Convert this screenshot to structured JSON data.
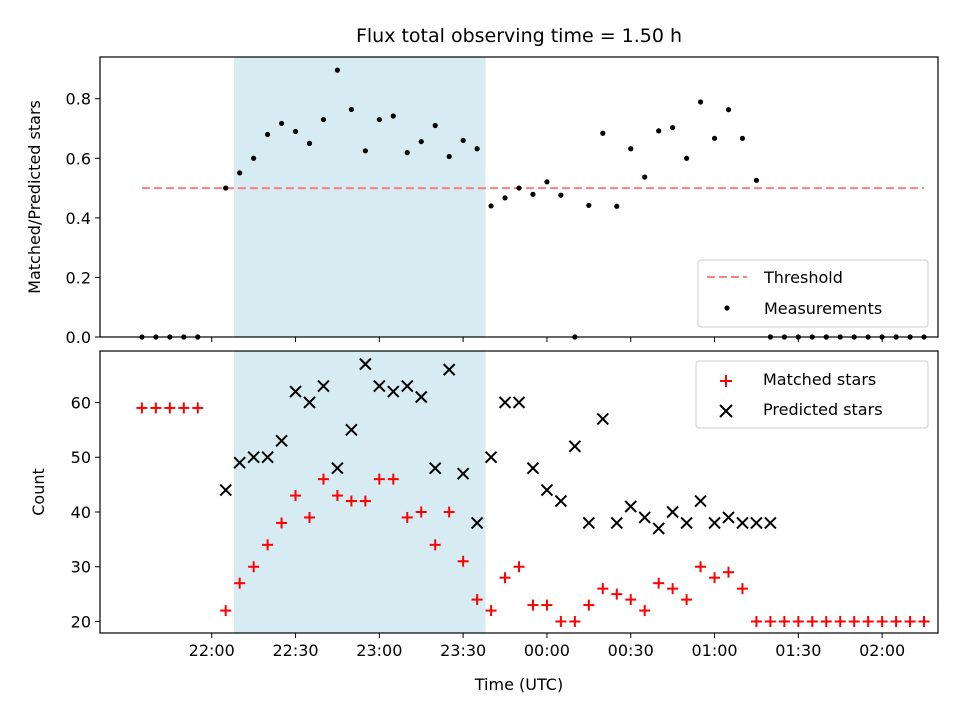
{
  "chart_data": [
    {
      "panel": "top",
      "type": "scatter",
      "title": "Flux total observing time = 1.50 h",
      "ylabel": "Matched/Predicted stars",
      "xlabel": "",
      "ylim": [
        0,
        0.94
      ],
      "yticks": [
        0.0,
        0.2,
        0.4,
        0.6,
        0.8
      ],
      "ytick_labels": [
        "0.0",
        "0.2",
        "0.4",
        "0.6",
        "0.8"
      ],
      "shaded_interval": {
        "from": "22:08",
        "to": "23:38",
        "color": "#add8e6"
      },
      "legend": {
        "placement": "lower right",
        "entries": [
          "Threshold",
          "Measurements"
        ]
      },
      "series": [
        {
          "name": "Threshold",
          "style": "dashed-line",
          "color": "#ff7f7f",
          "x": [
            "21:35",
            "02:15"
          ],
          "y": [
            0.5,
            0.5
          ]
        },
        {
          "name": "Measurements",
          "style": "dot",
          "color": "#000000",
          "x": [
            "21:35",
            "21:40",
            "21:45",
            "21:50",
            "21:55",
            "22:05",
            "22:10",
            "22:15",
            "22:20",
            "22:25",
            "22:30",
            "22:35",
            "22:40",
            "22:45",
            "22:50",
            "22:55",
            "23:00",
            "23:05",
            "23:10",
            "23:15",
            "23:20",
            "23:25",
            "23:30",
            "23:35",
            "23:40",
            "23:45",
            "23:50",
            "23:55",
            "00:00",
            "00:05",
            "00:10",
            "00:15",
            "00:20",
            "00:25",
            "00:30",
            "00:35",
            "00:40",
            "00:45",
            "00:50",
            "00:55",
            "01:00",
            "01:05",
            "01:10",
            "01:15",
            "01:20",
            "01:25",
            "01:30",
            "01:35",
            "01:40",
            "01:45",
            "01:50",
            "01:55",
            "02:00",
            "02:05",
            "02:10",
            "02:15"
          ],
          "y": [
            0.0,
            0.0,
            0.0,
            0.0,
            0.0,
            0.5,
            0.551,
            0.6,
            0.68,
            0.717,
            0.69,
            0.65,
            0.73,
            0.896,
            0.764,
            0.625,
            0.73,
            0.742,
            0.619,
            0.656,
            0.71,
            0.606,
            0.66,
            0.632,
            0.44,
            0.467,
            0.5,
            0.479,
            0.521,
            0.476,
            0.0,
            0.442,
            0.684,
            0.439,
            0.632,
            0.537,
            0.692,
            0.703,
            0.6,
            0.789,
            0.667,
            0.763,
            0.667,
            0.526,
            0.0,
            0.0,
            0.0,
            0.0,
            0.0,
            0.0,
            0.0,
            0.0,
            0.0,
            0.0,
            0.0,
            0.0
          ]
        }
      ]
    },
    {
      "panel": "bottom",
      "type": "scatter",
      "title": "",
      "ylabel": "Count",
      "xlabel": "Time (UTC)",
      "ylim": [
        17.9,
        69.4
      ],
      "yticks": [
        20,
        30,
        40,
        50,
        60
      ],
      "ytick_labels": [
        "20",
        "30",
        "40",
        "50",
        "60"
      ],
      "xlim": [
        "21:20",
        "02:20"
      ],
      "xticks": [
        "22:00",
        "22:30",
        "23:00",
        "23:30",
        "00:00",
        "00:30",
        "01:00",
        "01:30",
        "02:00"
      ],
      "xtick_labels": [
        "22:00",
        "22:30",
        "23:00",
        "23:30",
        "00:00",
        "00:30",
        "01:00",
        "01:30",
        "02:00"
      ],
      "shaded_interval": {
        "from": "22:08",
        "to": "23:38",
        "color": "#add8e6"
      },
      "legend": {
        "placement": "upper right",
        "entries": [
          "Matched stars",
          "Predicted stars"
        ]
      },
      "series": [
        {
          "name": "Matched stars",
          "marker": "plus",
          "color": "#ff0000",
          "x": [
            "21:35",
            "21:40",
            "21:45",
            "21:50",
            "21:55",
            "22:05",
            "22:10",
            "22:15",
            "22:20",
            "22:25",
            "22:30",
            "22:35",
            "22:40",
            "22:45",
            "22:50",
            "22:55",
            "23:00",
            "23:05",
            "23:10",
            "23:15",
            "23:20",
            "23:25",
            "23:30",
            "23:35",
            "23:40",
            "23:45",
            "23:50",
            "23:55",
            "00:00",
            "00:05",
            "00:10",
            "00:15",
            "00:20",
            "00:25",
            "00:30",
            "00:35",
            "00:40",
            "00:45",
            "00:50",
            "00:55",
            "01:00",
            "01:05",
            "01:10",
            "01:15",
            "01:20",
            "01:25",
            "01:30",
            "01:35",
            "01:40",
            "01:45",
            "01:50",
            "01:55",
            "02:00",
            "02:05",
            "02:10",
            "02:15"
          ],
          "y": [
            59,
            59,
            59,
            59,
            59,
            22,
            27,
            30,
            34,
            38,
            43,
            39,
            46,
            43,
            42,
            42,
            46,
            46,
            39,
            40,
            34,
            40,
            31,
            24,
            22,
            28,
            30,
            23,
            23,
            20,
            20,
            23,
            26,
            25,
            24,
            22,
            27,
            26,
            24,
            30,
            28,
            29,
            26,
            20,
            20,
            20,
            20,
            20,
            20,
            20,
            20,
            20,
            20,
            20,
            20,
            20
          ]
        },
        {
          "name": "Predicted stars",
          "marker": "x",
          "color": "#000000",
          "x": [
            "22:05",
            "22:10",
            "22:15",
            "22:20",
            "22:25",
            "22:30",
            "22:35",
            "22:40",
            "22:45",
            "22:50",
            "22:55",
            "23:00",
            "23:05",
            "23:10",
            "23:15",
            "23:20",
            "23:25",
            "23:30",
            "23:35",
            "23:40",
            "23:45",
            "23:50",
            "23:55",
            "00:00",
            "00:05",
            "00:10",
            "00:15",
            "00:20",
            "00:25",
            "00:30",
            "00:35",
            "00:40",
            "00:45",
            "00:50",
            "00:55",
            "01:00",
            "01:05",
            "01:10",
            "01:15",
            "01:20"
          ],
          "y": [
            44,
            49,
            50,
            50,
            53,
            62,
            60,
            63,
            48,
            55,
            67,
            63,
            62,
            63,
            61,
            48,
            66,
            47,
            38,
            50,
            60,
            60,
            48,
            44,
            42,
            52,
            38,
            57,
            38,
            41,
            39,
            37,
            40,
            38,
            42,
            38,
            39,
            38,
            38,
            38
          ]
        }
      ]
    }
  ]
}
